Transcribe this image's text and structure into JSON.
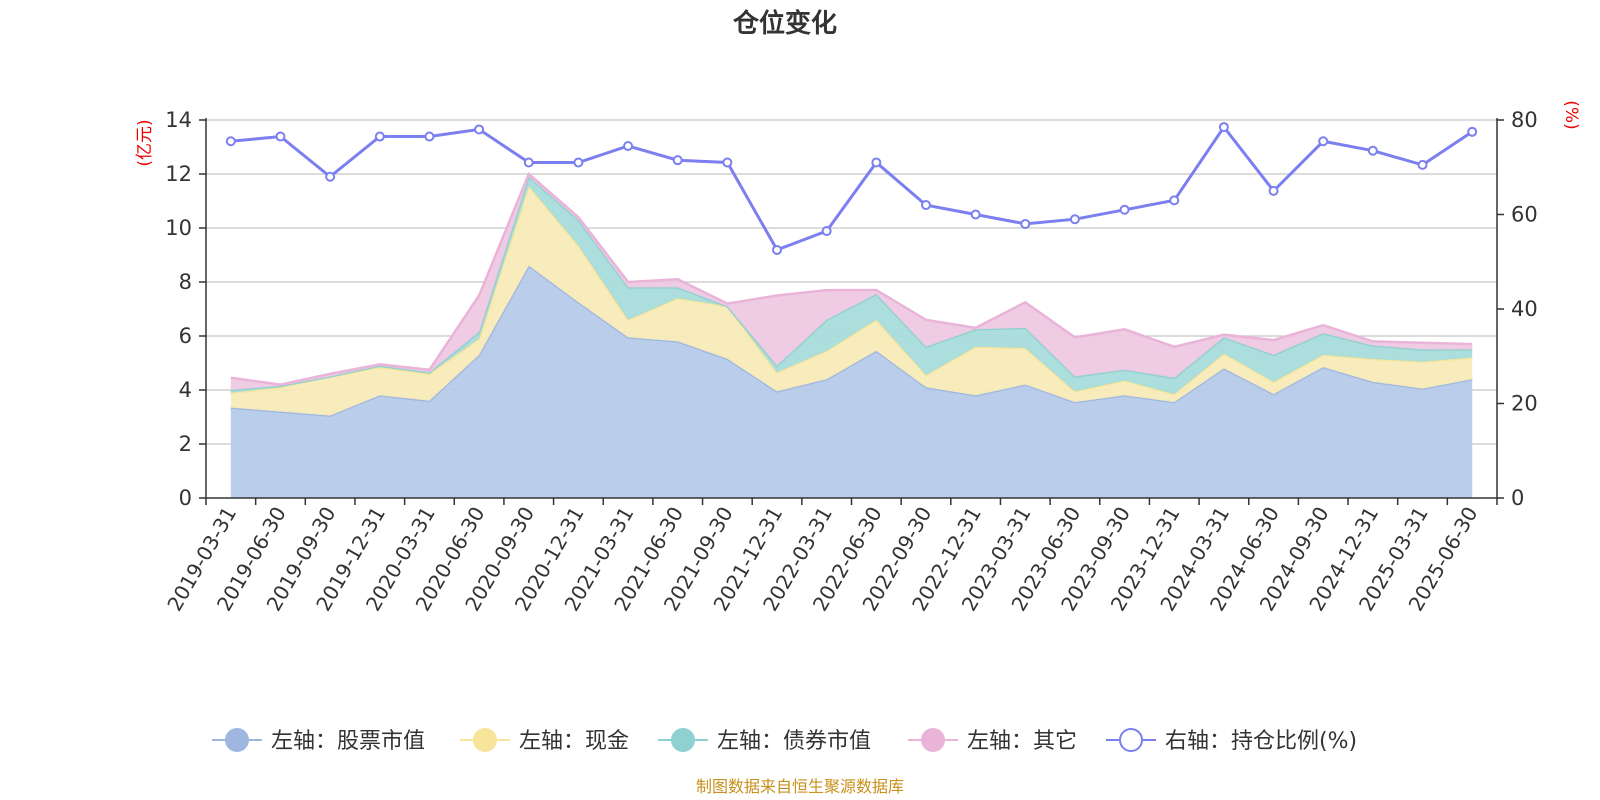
{
  "chart_data": {
    "type": "area",
    "title": "仓位变化",
    "source_note": "制图数据来自恒生聚源数据库",
    "left_axis": {
      "unit": "(亿元)",
      "min": 0,
      "max": 14,
      "ticks": [
        0,
        2,
        4,
        6,
        8,
        10,
        12,
        14
      ]
    },
    "right_axis": {
      "unit": "(%)",
      "min": 0,
      "max": 80,
      "ticks": [
        0,
        20,
        40,
        60,
        80
      ]
    },
    "grid": true,
    "legend_position": "bottom",
    "categories": [
      "2019-03-31",
      "2019-06-30",
      "2019-09-30",
      "2019-12-31",
      "2020-03-31",
      "2020-06-30",
      "2020-09-30",
      "2020-12-31",
      "2021-03-31",
      "2021-06-30",
      "2021-09-30",
      "2021-12-31",
      "2022-03-31",
      "2022-06-30",
      "2022-09-30",
      "2022-12-31",
      "2023-03-31",
      "2023-06-30",
      "2023-09-30",
      "2023-12-31",
      "2024-03-31",
      "2024-06-30",
      "2024-09-30",
      "2024-12-31",
      "2025-03-31",
      "2025-06-30"
    ],
    "stacked_series": [
      {
        "name": "左轴：股票市值",
        "color": "#9fb7e0",
        "fill": "#b6cbea",
        "values": [
          3.35,
          3.2,
          3.05,
          3.8,
          3.6,
          5.3,
          8.6,
          7.25,
          5.95,
          5.8,
          5.15,
          3.95,
          4.4,
          5.45,
          4.1,
          3.8,
          4.2,
          3.55,
          3.8,
          3.55,
          4.8,
          3.85,
          4.85,
          4.3,
          4.05,
          4.4
        ]
      },
      {
        "name": "左轴：现金",
        "color": "#f6e59a",
        "fill": "#f8ebb8",
        "values": [
          0.55,
          0.9,
          1.45,
          1.05,
          1.0,
          0.6,
          2.95,
          2.1,
          0.65,
          1.6,
          1.95,
          0.7,
          1.05,
          1.15,
          0.45,
          1.8,
          1.35,
          0.4,
          0.55,
          0.3,
          0.55,
          0.45,
          0.45,
          0.85,
          1.0,
          0.8
        ]
      },
      {
        "name": "左轴：债券市值",
        "color": "#8fd0d0",
        "fill": "#a7dcda",
        "values": [
          0.1,
          0.05,
          0.0,
          0.05,
          0.05,
          0.25,
          0.35,
          0.95,
          1.2,
          0.4,
          0.0,
          0.25,
          1.15,
          0.95,
          1.05,
          0.65,
          0.75,
          0.55,
          0.4,
          0.6,
          0.6,
          1.0,
          0.8,
          0.5,
          0.45,
          0.3
        ]
      },
      {
        "name": "左轴：其它",
        "color": "#e9b4d8",
        "fill": "#eec9e3",
        "values": [
          0.45,
          0.05,
          0.1,
          0.05,
          0.1,
          1.35,
          0.1,
          0.1,
          0.2,
          0.3,
          0.1,
          2.6,
          1.1,
          0.15,
          1.0,
          0.05,
          0.95,
          1.45,
          1.5,
          1.15,
          0.1,
          0.55,
          0.3,
          0.15,
          0.25,
          0.2
        ]
      }
    ],
    "line_series": {
      "name": "右轴：持仓比例(%)",
      "color": "#7b7ff0",
      "values": [
        75.5,
        76.5,
        68,
        76.5,
        76.5,
        78,
        71,
        71,
        74.5,
        71.5,
        71,
        52.5,
        56.5,
        71,
        62,
        60,
        58,
        59,
        61,
        63,
        78.5,
        65,
        75.5,
        73.5,
        70.5,
        77.5
      ]
    }
  }
}
